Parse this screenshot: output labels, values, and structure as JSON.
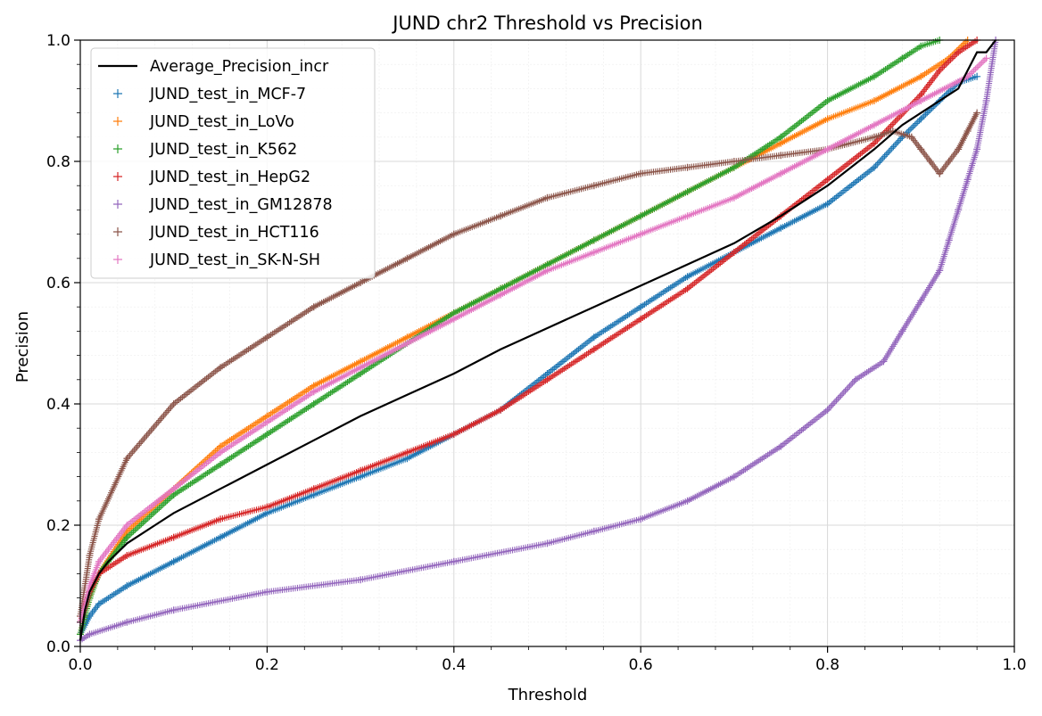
{
  "chart_data": {
    "type": "scatter",
    "title": "JUND chr2 Threshold vs Precision",
    "xlabel": "Threshold",
    "ylabel": "Precision",
    "xlim": [
      0,
      1
    ],
    "ylim": [
      0,
      1
    ],
    "xticks": [
      0,
      0.2,
      0.4,
      0.6,
      0.8,
      1.0
    ],
    "yticks": [
      0,
      0.2,
      0.4,
      0.6,
      0.8,
      1.0
    ],
    "xtick_labels": [
      "0.0",
      "0.2",
      "0.4",
      "0.6",
      "0.8",
      "1.0"
    ],
    "ytick_labels": [
      "0.0",
      "0.2",
      "0.4",
      "0.6",
      "0.8",
      "1.0"
    ],
    "grid": true,
    "minor_grid": true,
    "legend_position": "upper-left",
    "line_series": [
      {
        "name": "Average_Precision_incr",
        "color": "#000000",
        "x": [
          0.0,
          0.005,
          0.01,
          0.02,
          0.03,
          0.05,
          0.08,
          0.1,
          0.15,
          0.2,
          0.25,
          0.3,
          0.35,
          0.4,
          0.45,
          0.5,
          0.55,
          0.6,
          0.65,
          0.7,
          0.75,
          0.8,
          0.85,
          0.88,
          0.9,
          0.92,
          0.94,
          0.95,
          0.96,
          0.97,
          0.975,
          0.98
        ],
        "y": [
          0.01,
          0.06,
          0.09,
          0.12,
          0.14,
          0.17,
          0.2,
          0.22,
          0.26,
          0.3,
          0.34,
          0.38,
          0.415,
          0.45,
          0.49,
          0.525,
          0.56,
          0.595,
          0.63,
          0.665,
          0.71,
          0.76,
          0.82,
          0.86,
          0.88,
          0.9,
          0.92,
          0.95,
          0.98,
          0.98,
          0.99,
          1.0
        ]
      }
    ],
    "series": [
      {
        "name": "JUND_test_in_MCF-7",
        "color": "#1f77b4",
        "x": [
          0.0,
          0.01,
          0.02,
          0.05,
          0.1,
          0.15,
          0.2,
          0.25,
          0.3,
          0.35,
          0.4,
          0.45,
          0.5,
          0.55,
          0.6,
          0.65,
          0.7,
          0.75,
          0.8,
          0.85,
          0.88,
          0.9,
          0.92,
          0.94,
          0.96
        ],
        "y": [
          0.02,
          0.05,
          0.07,
          0.1,
          0.14,
          0.18,
          0.22,
          0.25,
          0.28,
          0.31,
          0.35,
          0.39,
          0.45,
          0.51,
          0.56,
          0.61,
          0.65,
          0.69,
          0.73,
          0.79,
          0.84,
          0.87,
          0.9,
          0.93,
          0.94
        ]
      },
      {
        "name": "JUND_test_in_LoVo",
        "color": "#ff7f0e",
        "x": [
          0.0,
          0.01,
          0.02,
          0.05,
          0.1,
          0.15,
          0.2,
          0.25,
          0.3,
          0.35,
          0.4,
          0.45,
          0.5,
          0.55,
          0.6,
          0.65,
          0.7,
          0.75,
          0.8,
          0.85,
          0.9,
          0.93,
          0.95
        ],
        "y": [
          0.02,
          0.08,
          0.12,
          0.19,
          0.26,
          0.33,
          0.38,
          0.43,
          0.47,
          0.51,
          0.55,
          0.59,
          0.63,
          0.67,
          0.71,
          0.75,
          0.79,
          0.83,
          0.87,
          0.9,
          0.94,
          0.97,
          1.0
        ]
      },
      {
        "name": "JUND_test_in_K562",
        "color": "#2ca02c",
        "x": [
          0.0,
          0.01,
          0.02,
          0.05,
          0.1,
          0.15,
          0.2,
          0.25,
          0.3,
          0.35,
          0.4,
          0.45,
          0.5,
          0.55,
          0.6,
          0.65,
          0.7,
          0.75,
          0.8,
          0.85,
          0.88,
          0.9,
          0.92
        ],
        "y": [
          0.02,
          0.08,
          0.12,
          0.18,
          0.25,
          0.3,
          0.35,
          0.4,
          0.45,
          0.5,
          0.55,
          0.59,
          0.63,
          0.67,
          0.71,
          0.75,
          0.79,
          0.84,
          0.9,
          0.94,
          0.97,
          0.99,
          1.0
        ]
      },
      {
        "name": "JUND_test_in_HepG2",
        "color": "#d62728",
        "x": [
          0.0,
          0.01,
          0.02,
          0.05,
          0.1,
          0.15,
          0.2,
          0.25,
          0.3,
          0.35,
          0.4,
          0.45,
          0.5,
          0.55,
          0.6,
          0.65,
          0.7,
          0.75,
          0.8,
          0.85,
          0.9,
          0.92,
          0.94,
          0.96
        ],
        "y": [
          0.04,
          0.09,
          0.12,
          0.15,
          0.18,
          0.21,
          0.23,
          0.26,
          0.29,
          0.32,
          0.35,
          0.39,
          0.44,
          0.49,
          0.54,
          0.59,
          0.65,
          0.71,
          0.77,
          0.83,
          0.91,
          0.95,
          0.98,
          1.0
        ]
      },
      {
        "name": "JUND_test_in_GM12878",
        "color": "#9467bd",
        "x": [
          0.0,
          0.01,
          0.05,
          0.1,
          0.2,
          0.3,
          0.4,
          0.5,
          0.55,
          0.6,
          0.65,
          0.7,
          0.75,
          0.8,
          0.83,
          0.86,
          0.88,
          0.9,
          0.92,
          0.93,
          0.94,
          0.95,
          0.96,
          0.97,
          0.98
        ],
        "y": [
          0.01,
          0.02,
          0.04,
          0.06,
          0.09,
          0.11,
          0.14,
          0.17,
          0.19,
          0.21,
          0.24,
          0.28,
          0.33,
          0.39,
          0.44,
          0.47,
          0.52,
          0.57,
          0.62,
          0.67,
          0.72,
          0.77,
          0.82,
          0.9,
          1.0
        ]
      },
      {
        "name": "JUND_test_in_HCT116",
        "color": "#8c564b",
        "x": [
          0.0,
          0.01,
          0.02,
          0.05,
          0.1,
          0.15,
          0.2,
          0.25,
          0.3,
          0.35,
          0.4,
          0.45,
          0.5,
          0.55,
          0.6,
          0.65,
          0.7,
          0.75,
          0.8,
          0.85,
          0.87,
          0.89,
          0.9,
          0.91,
          0.92,
          0.93,
          0.94,
          0.95,
          0.96
        ],
        "y": [
          0.05,
          0.15,
          0.21,
          0.31,
          0.4,
          0.46,
          0.51,
          0.56,
          0.6,
          0.64,
          0.68,
          0.71,
          0.74,
          0.76,
          0.78,
          0.79,
          0.8,
          0.81,
          0.82,
          0.84,
          0.85,
          0.84,
          0.82,
          0.8,
          0.78,
          0.8,
          0.82,
          0.85,
          0.88
        ]
      },
      {
        "name": "JUND_test_in_SK-N-SH",
        "color": "#e377c2",
        "x": [
          0.0,
          0.01,
          0.02,
          0.05,
          0.1,
          0.15,
          0.2,
          0.25,
          0.3,
          0.35,
          0.4,
          0.45,
          0.5,
          0.55,
          0.6,
          0.65,
          0.7,
          0.75,
          0.8,
          0.85,
          0.9,
          0.95,
          0.97
        ],
        "y": [
          0.04,
          0.1,
          0.14,
          0.2,
          0.26,
          0.32,
          0.37,
          0.42,
          0.46,
          0.5,
          0.54,
          0.58,
          0.62,
          0.65,
          0.68,
          0.71,
          0.74,
          0.78,
          0.82,
          0.86,
          0.9,
          0.94,
          0.97
        ]
      }
    ]
  }
}
